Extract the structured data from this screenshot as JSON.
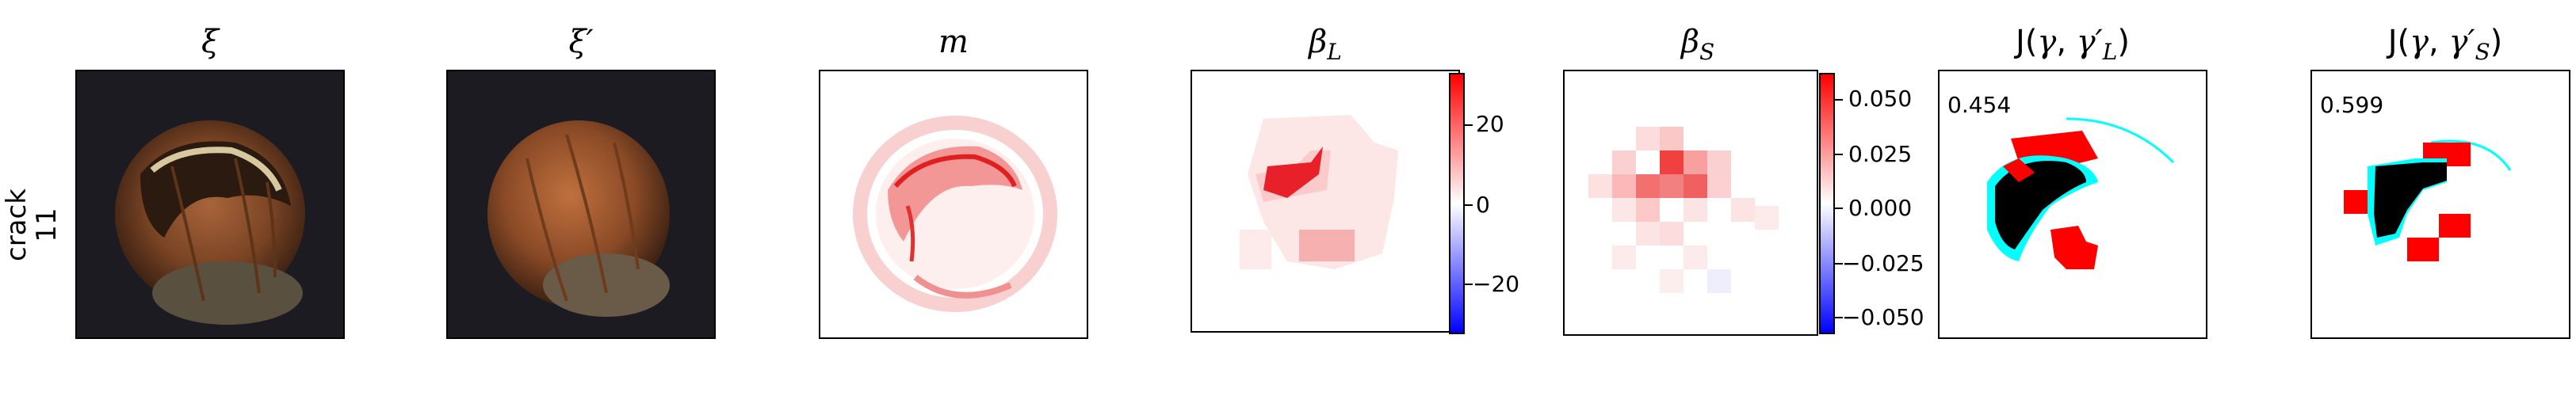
{
  "row_label": {
    "line1": "crack",
    "line2": "11"
  },
  "panels": {
    "xi": {
      "title": "ξ"
    },
    "xi_prime": {
      "title": "ξ′"
    },
    "m": {
      "title": "m"
    },
    "beta_L": {
      "title": "β",
      "sub": "L",
      "colorbar": {
        "ticks": [
          "20",
          "0",
          "−20"
        ],
        "range": [
          -30,
          30
        ]
      }
    },
    "beta_S": {
      "title": "β",
      "sub": "S",
      "colorbar": {
        "ticks": [
          "0.050",
          "0.025",
          "0.000",
          "−0.025",
          "−0.050"
        ],
        "range": [
          -0.06,
          0.06
        ]
      }
    },
    "J_L": {
      "title_pre": "J(",
      "g": "γ",
      "sep": ", ",
      "g2": "γ′",
      "sub": "L",
      "title_post": ")",
      "score": "0.454"
    },
    "J_S": {
      "title_pre": "J(",
      "g": "γ",
      "sep": ", ",
      "g2": "γ′",
      "sub": "S",
      "title_post": ")",
      "score": "0.599"
    }
  },
  "colors": {
    "red": "#ff0000",
    "blue": "#0000ff",
    "cyan": "#00ffff",
    "black": "#000000"
  }
}
